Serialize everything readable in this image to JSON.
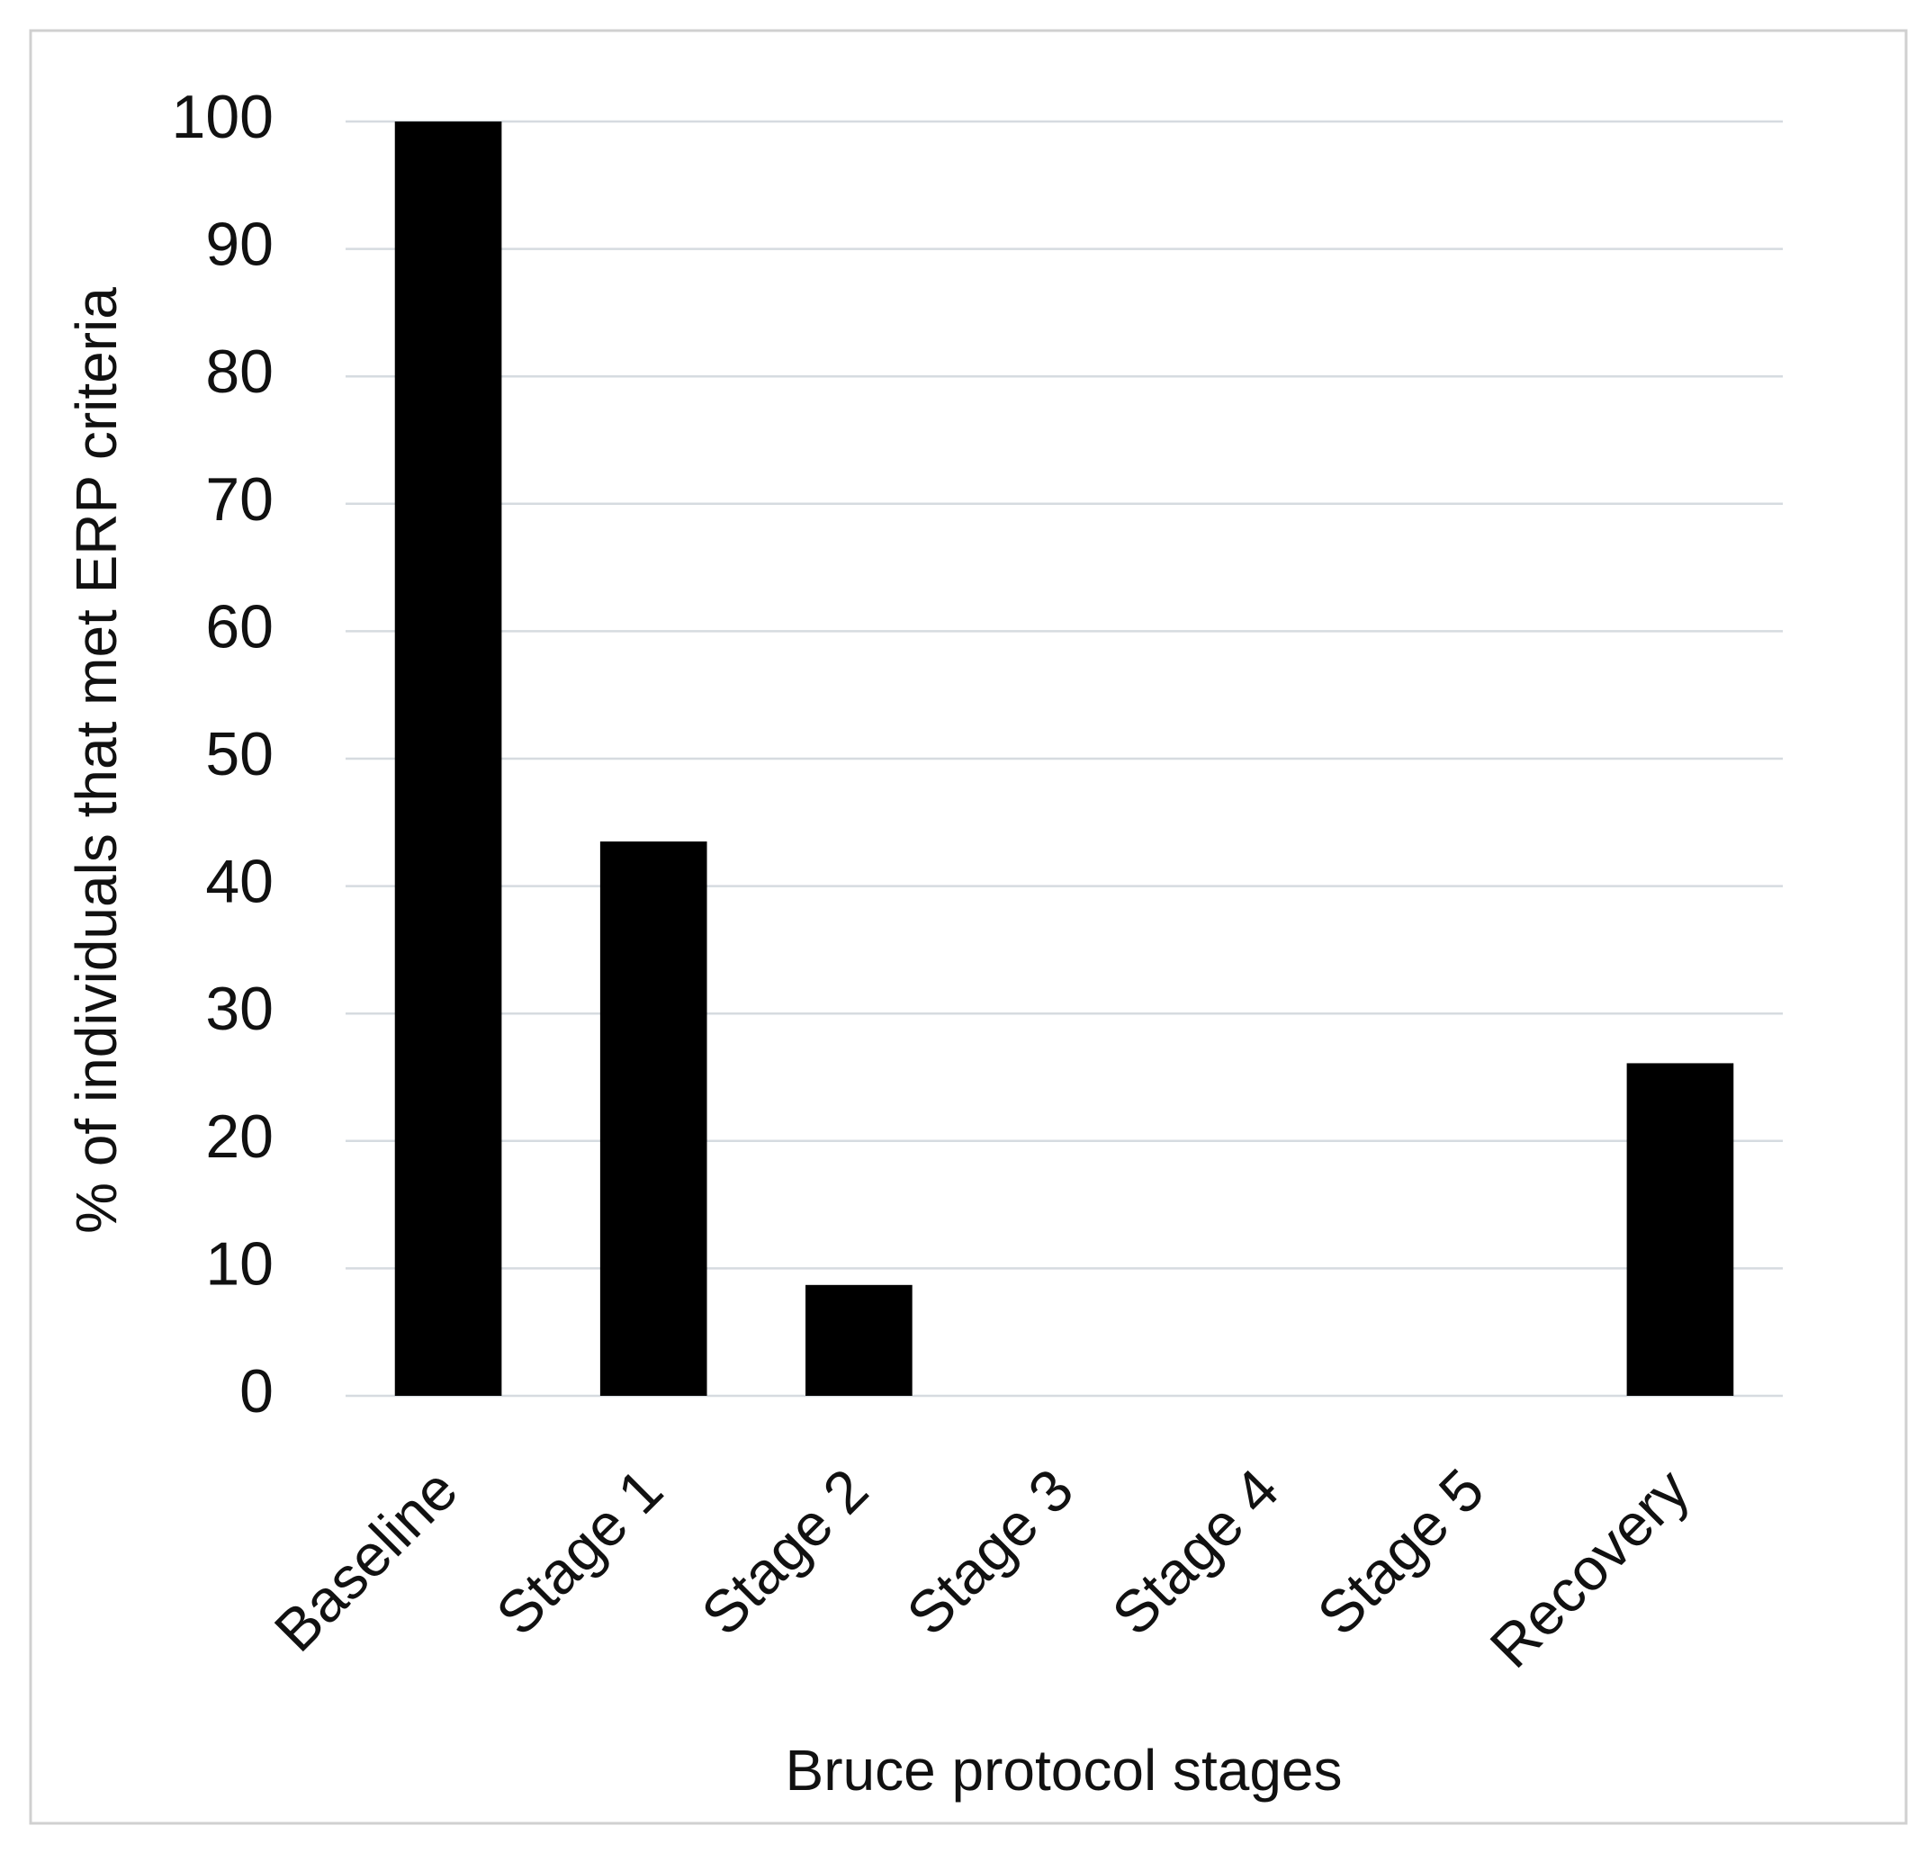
{
  "chart_data": {
    "type": "bar",
    "categories": [
      "Baseline",
      "Stage 1",
      "Stage 2",
      "Stage 3",
      "Stage 4",
      "Stage 5",
      "Recovery"
    ],
    "values": [
      100,
      43.5,
      8.7,
      0,
      0,
      0,
      26.1
    ],
    "color": "#000000",
    "x_label": "Bruce protocol stages",
    "y_label": "% of individuals that met ERP criteria",
    "ylim": [
      0,
      100
    ],
    "yticks": [
      0,
      10,
      20,
      30,
      40,
      50,
      60,
      70,
      80,
      90,
      100
    ],
    "grid": true
  }
}
